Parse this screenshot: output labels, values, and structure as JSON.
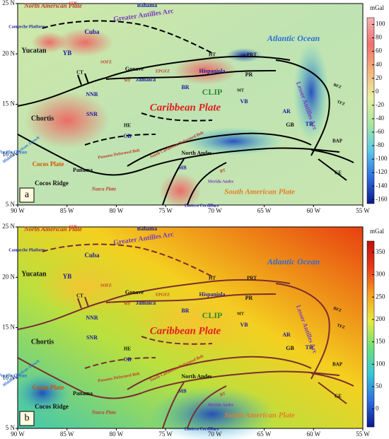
{
  "map": {
    "lonlim": [
      -90,
      -55
    ],
    "latlim": [
      5,
      25
    ],
    "xticks": [
      {
        "value": -90,
        "label": "90 W"
      },
      {
        "value": -85,
        "label": "85 W"
      },
      {
        "value": -80,
        "label": "80 W"
      },
      {
        "value": -75,
        "label": "75 W"
      },
      {
        "value": -70,
        "label": "70 W"
      },
      {
        "value": -65,
        "label": "65 W"
      },
      {
        "value": -60,
        "label": "60 W"
      },
      {
        "value": -55,
        "label": "55 W"
      }
    ],
    "yticks": [
      {
        "value": 5,
        "label": "5 N"
      },
      {
        "value": 10,
        "label": "10 N"
      },
      {
        "value": 15,
        "label": "15 N"
      },
      {
        "value": 20,
        "label": "20 N"
      },
      {
        "value": 25,
        "label": "25 N"
      }
    ]
  },
  "labels": [
    {
      "text": "North American Plate",
      "color": "#c0392b"
    },
    {
      "text": "SFB",
      "color": "#c0392b"
    },
    {
      "text": "Bahama",
      "color": "#1a1aa0"
    },
    {
      "text": "Greater Antilles Arc",
      "color": "#7a3db8"
    },
    {
      "text": "Campeche Platform",
      "color": "#1a1aa0"
    },
    {
      "text": "Cuba",
      "color": "#1a1aa0"
    },
    {
      "text": "Yucatan",
      "color": "#111111"
    },
    {
      "text": "YB",
      "color": "#1a1aa0"
    },
    {
      "text": "Atlantic Ocean",
      "color": "#2a6fd6"
    },
    {
      "text": "HT",
      "color": "#111111"
    },
    {
      "text": "PRT",
      "color": "#111111"
    },
    {
      "text": "SOFZ",
      "color": "#c0392b"
    },
    {
      "text": "CT",
      "color": "#111111"
    },
    {
      "text": "Gonave",
      "color": "#111111"
    },
    {
      "text": "EPGFZ",
      "color": "#c0392b"
    },
    {
      "text": "Hispaniola",
      "color": "#1a1aa0"
    },
    {
      "text": "PR",
      "color": "#111111"
    },
    {
      "text": "WF",
      "color": "#c0392b"
    },
    {
      "text": "Jamaica",
      "color": "#1a1aa0"
    },
    {
      "text": "BR",
      "color": "#1a1aa0"
    },
    {
      "text": "CLIP",
      "color": "#2e8b2e"
    },
    {
      "text": "MT",
      "color": "#111111"
    },
    {
      "text": "NNR",
      "color": "#1a1aa0"
    },
    {
      "text": "Caribbean Plate",
      "color": "#e02020"
    },
    {
      "text": "VB",
      "color": "#1a1aa0"
    },
    {
      "text": "AR",
      "color": "#1a1aa0"
    },
    {
      "text": "Lesser Antilles Arc",
      "color": "#7a3db8"
    },
    {
      "text": "BFZ",
      "color": "#111111"
    },
    {
      "text": "TFZ",
      "color": "#111111"
    },
    {
      "text": "Chortis",
      "color": "#111111"
    },
    {
      "text": "SNR",
      "color": "#1a1aa0"
    },
    {
      "text": "HE",
      "color": "#111111"
    },
    {
      "text": "GB",
      "color": "#111111"
    },
    {
      "text": "TB",
      "color": "#1a1aa0"
    },
    {
      "text": "CB",
      "color": "#1a1aa0"
    },
    {
      "text": "BAP",
      "color": "#111111"
    },
    {
      "text": "Pacific Ocean",
      "color": "#2a6fd6"
    },
    {
      "text": "Panama Deformed Belt",
      "color": "#c0392b"
    },
    {
      "text": "South Caribbean Deformed Belt",
      "color": "#c0392b"
    },
    {
      "text": "North Andes",
      "color": "#111111"
    },
    {
      "text": "MB",
      "color": "#1a1aa0"
    },
    {
      "text": "Cocos Plate",
      "color": "#d35400"
    },
    {
      "text": "Panama",
      "color": "#111111"
    },
    {
      "text": "Cocos Ridge",
      "color": "#111111"
    },
    {
      "text": "Middle American Trench",
      "color": "#2a6fd6"
    },
    {
      "text": "Merida Andes",
      "color": "#7a3db8"
    },
    {
      "text": "BT",
      "color": "#c0392b"
    },
    {
      "text": "GE",
      "color": "#111111"
    },
    {
      "text": "South American Plate",
      "color": "#e67e22"
    },
    {
      "text": "Nazca Plate",
      "color": "#c0392b"
    },
    {
      "text": "Eastern Cordillera",
      "color": "#1a1aa0"
    }
  ],
  "panels": [
    {
      "tag": "a",
      "unit": "mGal",
      "lim": [
        -166,
        110
      ],
      "ticks": [
        100,
        80,
        60,
        40,
        20,
        0,
        -20,
        -40,
        -60,
        -80,
        -100,
        -120,
        -140,
        -160
      ],
      "colors": [
        "#0a1a8c",
        "#2f6fe0",
        "#5ec9e8",
        "#a9e6a0",
        "#e8f0a0",
        "#f4b27a",
        "#f07070",
        "#f6b0b0"
      ]
    },
    {
      "tag": "b",
      "unit": "mGal",
      "lim": [
        -40,
        375
      ],
      "ticks": [
        350,
        300,
        250,
        200,
        150,
        100,
        50,
        0
      ],
      "colors": [
        "#0a1a8c",
        "#2f6fe0",
        "#38c7d6",
        "#6de07a",
        "#e6ea40",
        "#f7a020",
        "#e83a18",
        "#c01010"
      ]
    }
  ]
}
